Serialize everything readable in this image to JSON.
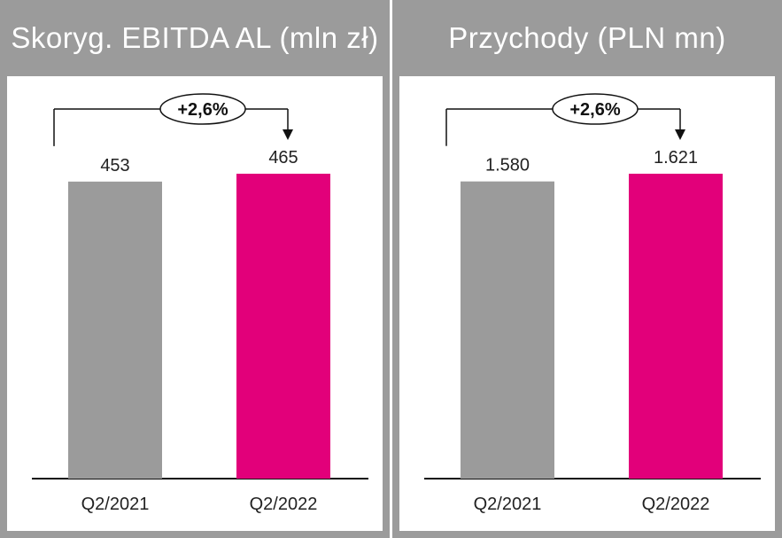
{
  "colors": {
    "bar_prev": "#9b9b9b",
    "bar_curr": "#e2007a",
    "frame": "#9b9b9b"
  },
  "chart_data": [
    {
      "type": "bar",
      "title": "Skoryg. EBITDA AL (mln zł)",
      "categories": [
        "Q2/2021",
        "Q2/2022"
      ],
      "values": [
        453,
        465
      ],
      "value_labels": [
        "453",
        "465"
      ],
      "annotation": "+2,6%",
      "ylim": [
        0,
        465
      ],
      "colors": [
        "#9b9b9b",
        "#e2007a"
      ]
    },
    {
      "type": "bar",
      "title": "Przychody (PLN mn)",
      "categories": [
        "Q2/2021",
        "Q2/2022"
      ],
      "values": [
        1580,
        1621
      ],
      "value_labels": [
        "1.580",
        "1.621"
      ],
      "annotation": "+2,6%",
      "ylim": [
        0,
        1621
      ],
      "colors": [
        "#9b9b9b",
        "#e2007a"
      ]
    }
  ]
}
